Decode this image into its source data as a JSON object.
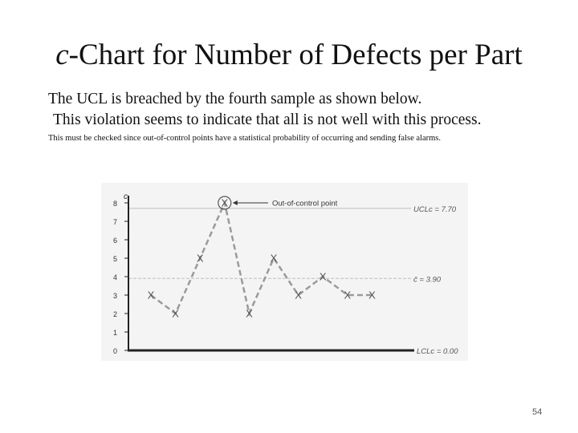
{
  "slide": {
    "title_c": "c",
    "title_rest": "-Chart for Number of Defects per Part",
    "line1": "The UCL is breached by the fourth sample as shown below.",
    "line2": "This violation seems to indicate that all is not well with this process.",
    "note": "This must be checked since out-of-control points have a statistical probability of occurring and sending false alarms.",
    "page_number": "54"
  },
  "chart_data": {
    "type": "line",
    "ylabel": "c",
    "ylim": [
      0,
      8
    ],
    "y_ticks": [
      "0",
      "1",
      "2",
      "3",
      "4",
      "5",
      "6",
      "7",
      "8"
    ],
    "grid": false,
    "marker_label": "X",
    "series": [
      {
        "values": [
          3,
          2,
          5,
          8,
          2,
          5,
          3,
          4,
          3,
          3
        ]
      }
    ],
    "control_lines": {
      "ucl": {
        "value": 7.7,
        "label": "UCLc = 7.70"
      },
      "center": {
        "value": 3.9,
        "label": "c̄ = 3.90"
      },
      "lcl": {
        "value": 0,
        "label": "LCLc = 0.00"
      }
    },
    "annotation": {
      "text": "Out-of-control point",
      "point_index": 3
    },
    "colors": {
      "series": "#9a9a9a",
      "marker": "#555555",
      "control_line": "#bdbdbd",
      "axis": "#222222",
      "background": "#f4f4f4"
    }
  }
}
